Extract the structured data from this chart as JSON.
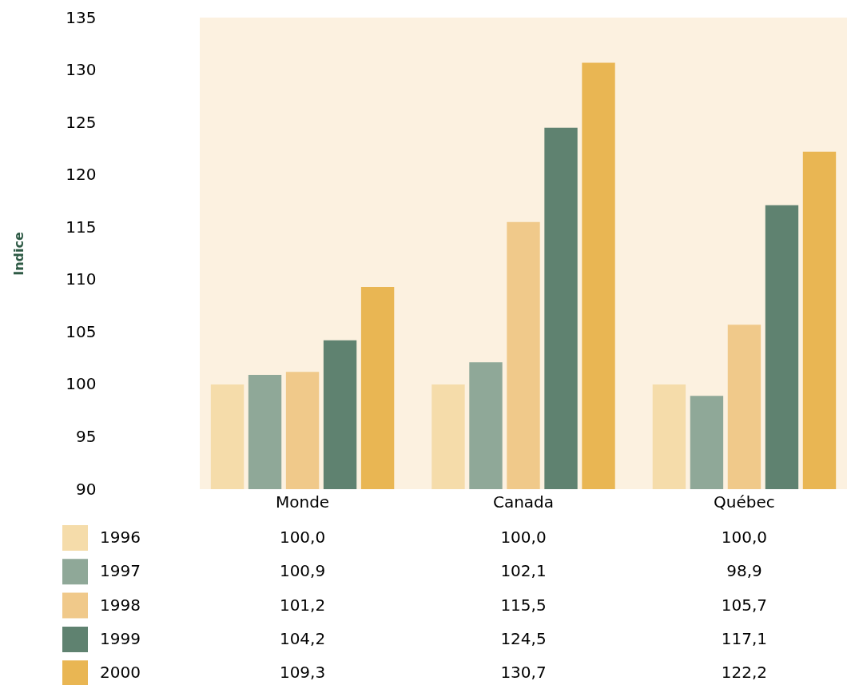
{
  "chart_data": {
    "type": "bar",
    "ylabel": "Indice",
    "categories": [
      "Monde",
      "Canada",
      "Québec"
    ],
    "series": [
      {
        "name": "1996",
        "color": "#f5dcaa",
        "values": [
          100.0,
          100.0,
          100.0
        ],
        "value_labels": [
          "100,0",
          "100,0",
          "100,0"
        ]
      },
      {
        "name": "1997",
        "color": "#8fa898",
        "values": [
          100.9,
          102.1,
          98.9
        ],
        "value_labels": [
          "100,9",
          "102,1",
          "98,9"
        ]
      },
      {
        "name": "1998",
        "color": "#f0c98a",
        "values": [
          101.2,
          115.5,
          105.7
        ],
        "value_labels": [
          "101,2",
          "115,5",
          "105,7"
        ]
      },
      {
        "name": "1999",
        "color": "#5f8270",
        "values": [
          104.2,
          124.5,
          117.1
        ],
        "value_labels": [
          "104,2",
          "124,5",
          "117,1"
        ]
      },
      {
        "name": "2000",
        "color": "#e9b653",
        "values": [
          109.3,
          130.7,
          122.2
        ],
        "value_labels": [
          "109,3",
          "130,7",
          "122,2"
        ]
      }
    ],
    "ylim": [
      90,
      135
    ],
    "yticks": [
      90,
      95,
      100,
      105,
      110,
      115,
      120,
      125,
      130,
      135
    ],
    "grid": false,
    "legend": "bottom left"
  }
}
